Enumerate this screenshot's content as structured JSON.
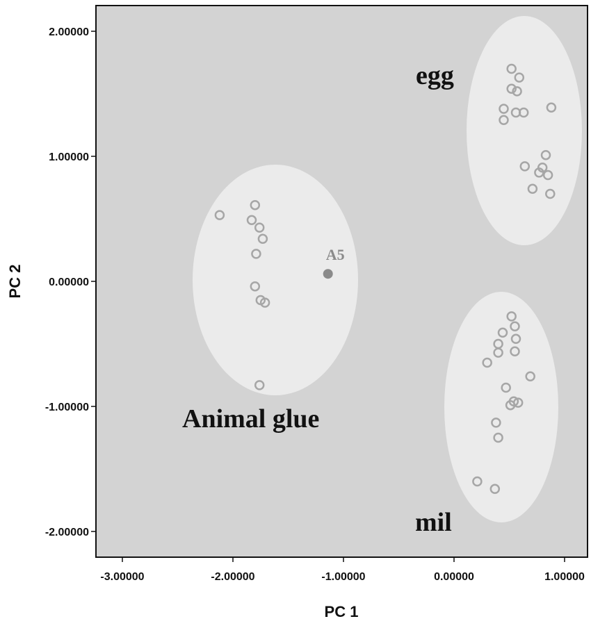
{
  "chart_data": {
    "type": "scatter",
    "xlabel": "PC 1",
    "ylabel": "PC 2",
    "xlim": [
      -3.25,
      1.2
    ],
    "ylim": [
      -2.2,
      2.2
    ],
    "x_ticks": [
      -3.0,
      -2.0,
      -1.0,
      0.0,
      1.0
    ],
    "x_tick_labels": [
      "-3.00000",
      "-2.00000",
      "-1.00000",
      "0.00000",
      "1.00000"
    ],
    "y_ticks": [
      2.0,
      1.0,
      0.0,
      -1.0,
      -2.0
    ],
    "y_tick_labels": [
      "2.00000",
      "1.00000",
      "0.00000",
      "-1.00000",
      "-2.00000"
    ],
    "grid": false,
    "plot_background": "#d3d3d3",
    "ellipse_fill": "#ebebeb",
    "marker_color": "#a6a6a6",
    "groups": [
      {
        "label": "Animal glue",
        "points": [
          {
            "x": -2.12,
            "y": 0.53
          },
          {
            "x": -1.8,
            "y": 0.61
          },
          {
            "x": -1.83,
            "y": 0.49
          },
          {
            "x": -1.76,
            "y": 0.43
          },
          {
            "x": -1.73,
            "y": 0.34
          },
          {
            "x": -1.79,
            "y": 0.22
          },
          {
            "x": -1.8,
            "y": -0.04
          },
          {
            "x": -1.75,
            "y": -0.15
          },
          {
            "x": -1.71,
            "y": -0.17
          },
          {
            "x": -1.76,
            "y": -0.83
          }
        ]
      },
      {
        "label": "egg",
        "points": [
          {
            "x": 0.52,
            "y": 1.7
          },
          {
            "x": 0.59,
            "y": 1.63
          },
          {
            "x": 0.52,
            "y": 1.54
          },
          {
            "x": 0.57,
            "y": 1.52
          },
          {
            "x": 0.45,
            "y": 1.38
          },
          {
            "x": 0.56,
            "y": 1.35
          },
          {
            "x": 0.63,
            "y": 1.35
          },
          {
            "x": 0.88,
            "y": 1.39
          },
          {
            "x": 0.45,
            "y": 1.29
          },
          {
            "x": 0.83,
            "y": 1.01
          },
          {
            "x": 0.64,
            "y": 0.92
          },
          {
            "x": 0.8,
            "y": 0.91
          },
          {
            "x": 0.77,
            "y": 0.87
          },
          {
            "x": 0.85,
            "y": 0.85
          },
          {
            "x": 0.71,
            "y": 0.74
          },
          {
            "x": 0.87,
            "y": 0.7
          }
        ]
      },
      {
        "label": "mil",
        "points": [
          {
            "x": 0.52,
            "y": -0.28
          },
          {
            "x": 0.55,
            "y": -0.36
          },
          {
            "x": 0.44,
            "y": -0.41
          },
          {
            "x": 0.56,
            "y": -0.46
          },
          {
            "x": 0.4,
            "y": -0.5
          },
          {
            "x": 0.55,
            "y": -0.56
          },
          {
            "x": 0.4,
            "y": -0.57
          },
          {
            "x": 0.3,
            "y": -0.65
          },
          {
            "x": 0.69,
            "y": -0.76
          },
          {
            "x": 0.47,
            "y": -0.85
          },
          {
            "x": 0.54,
            "y": -0.96
          },
          {
            "x": 0.58,
            "y": -0.97
          },
          {
            "x": 0.51,
            "y": -0.99
          },
          {
            "x": 0.38,
            "y": -1.13
          },
          {
            "x": 0.4,
            "y": -1.25
          },
          {
            "x": 0.21,
            "y": -1.6
          },
          {
            "x": 0.37,
            "y": -1.66
          }
        ]
      }
    ],
    "highlight_point": {
      "label": "A5",
      "x": -1.14,
      "y": 0.06
    }
  }
}
